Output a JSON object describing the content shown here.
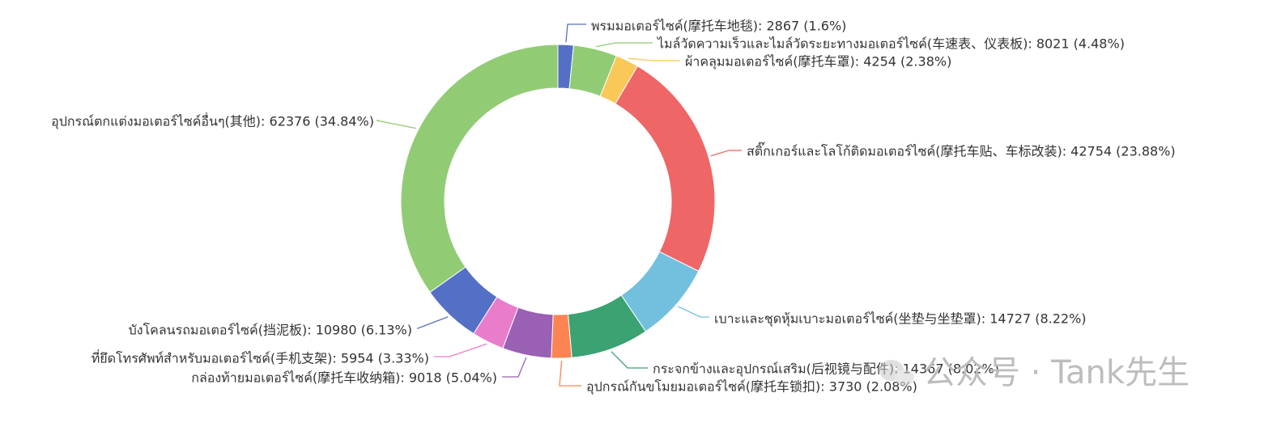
{
  "chart_data": {
    "type": "pie",
    "donut": true,
    "legend": "none",
    "slices": [
      {
        "label": "พรมมอเตอร์ไซค์(摩托车地毯): 2867 (1.6%)",
        "value": 2867,
        "percent": 1.6,
        "color": "#5470c6"
      },
      {
        "label": "ไมล์วัดความเร็วและไมล์วัดระยะทางมอเตอร์ไซค์(车速表、仪表板): 8021 (4.48%)",
        "value": 8021,
        "percent": 4.48,
        "color": "#91cc75"
      },
      {
        "label": "ผ้าคลุมมอเตอร์ไซค์(摩托车罩): 4254 (2.38%)",
        "value": 4254,
        "percent": 2.38,
        "color": "#fac858"
      },
      {
        "label": "สติ๊กเกอร์และโลโก้ติดมอเตอร์ไซค์(摩托车贴、车标改装): 42754 (23.88%)",
        "value": 42754,
        "percent": 23.88,
        "color": "#ee6666"
      },
      {
        "label": "เบาะและชุดหุ้มเบาะมอเตอร์ไซค์(坐垫与坐垫罩): 14727 (8.22%)",
        "value": 14727,
        "percent": 8.22,
        "color": "#73c0de"
      },
      {
        "label": "กระจกข้างและอุปกรณ์เสริม(后视镜与配件): 14367 (8.02%)",
        "value": 14367,
        "percent": 8.02,
        "color": "#3ba272"
      },
      {
        "label": "อุปกรณ์กันขโมยมอเตอร์ไซค์(摩托车锁扣): 3730 (2.08%)",
        "value": 3730,
        "percent": 2.08,
        "color": "#fc8452"
      },
      {
        "label": "กล่องท้ายมอเตอร์ไซค์(摩托车收纳箱): 9018 (5.04%)",
        "value": 9018,
        "percent": 5.04,
        "color": "#9a60b4"
      },
      {
        "label": "ที่ยึดโทรศัพท์สำหรับมอเตอร์ไซค์(手机支架): 5954 (3.33%)",
        "value": 5954,
        "percent": 3.33,
        "color": "#ea7ccc"
      },
      {
        "label": "บังโคลนรถมอเตอร์ไซค์(挡泥板): 10980 (6.13%)",
        "value": 10980,
        "percent": 6.13,
        "color": "#5470c6"
      },
      {
        "label": "อุปกรณ์ตกแต่งมอเตอร์ไซค์อื่นๆ(其他): 62376 (34.84%)",
        "value": 62376,
        "percent": 34.84,
        "color": "#91cc75"
      }
    ]
  },
  "watermark": {
    "text": "公众号 · Tank先生",
    "icon": "wechat-icon"
  }
}
